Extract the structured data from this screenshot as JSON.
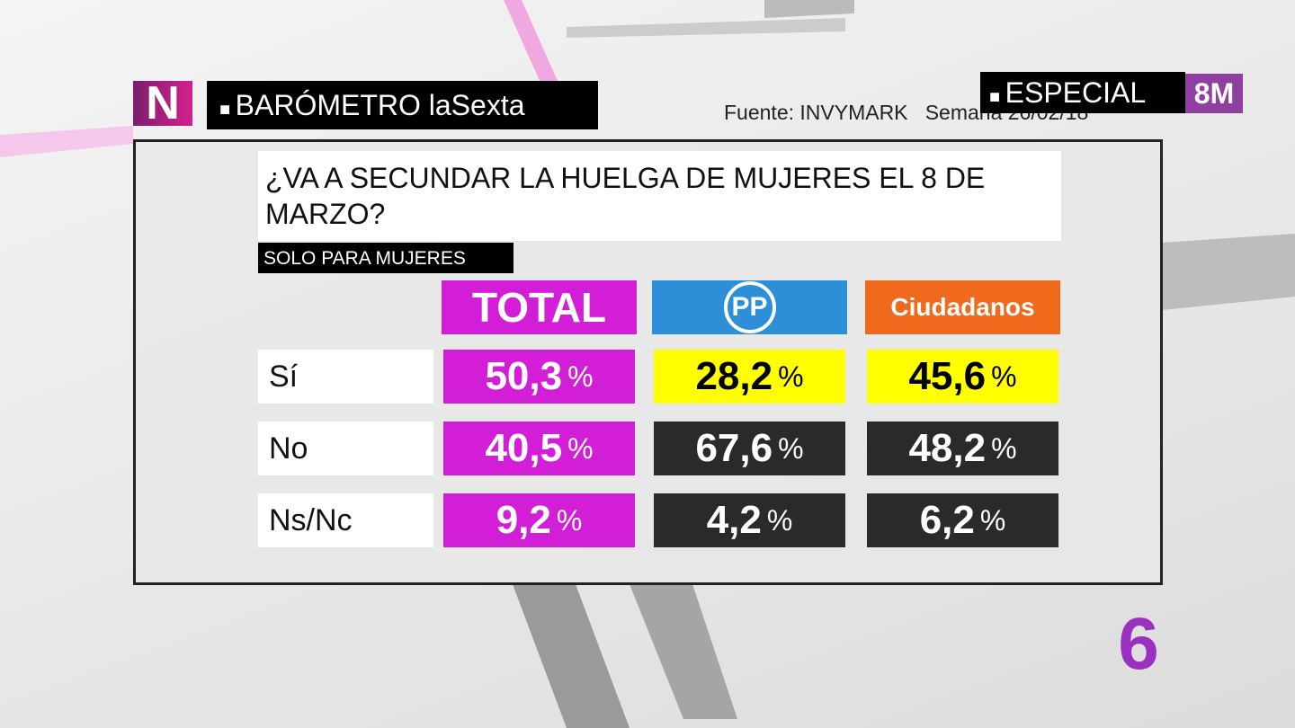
{
  "header": {
    "logo": "N",
    "program": "BARÓMETRO laSexta",
    "source": "Fuente: INVYMARK",
    "week": "Semana 26/02/18",
    "special": "ESPECIAL",
    "special_tag": "8M"
  },
  "question": "¿VA A SECUNDAR LA HUELGA DE MUJERES EL 8 DE MARZO?",
  "subtitle": "SOLO PARA MUJERES",
  "table": {
    "columns": [
      "TOTAL",
      "PP",
      "Ciudadanos"
    ],
    "rows": [
      {
        "label": "Sí",
        "cells": [
          {
            "value": "50,3",
            "unit": "%"
          },
          {
            "value": "28,2",
            "unit": "%"
          },
          {
            "value": "45,6",
            "unit": "%"
          }
        ]
      },
      {
        "label": "No",
        "cells": [
          {
            "value": "40,5",
            "unit": "%"
          },
          {
            "value": "67,6",
            "unit": "%"
          },
          {
            "value": "48,2",
            "unit": "%"
          }
        ]
      },
      {
        "label": "Ns/Nc",
        "cells": [
          {
            "value": "9,2",
            "unit": "%"
          },
          {
            "value": "4,2",
            "unit": "%"
          },
          {
            "value": "6,2",
            "unit": "%"
          }
        ]
      }
    ]
  },
  "channel_logo": "6"
}
